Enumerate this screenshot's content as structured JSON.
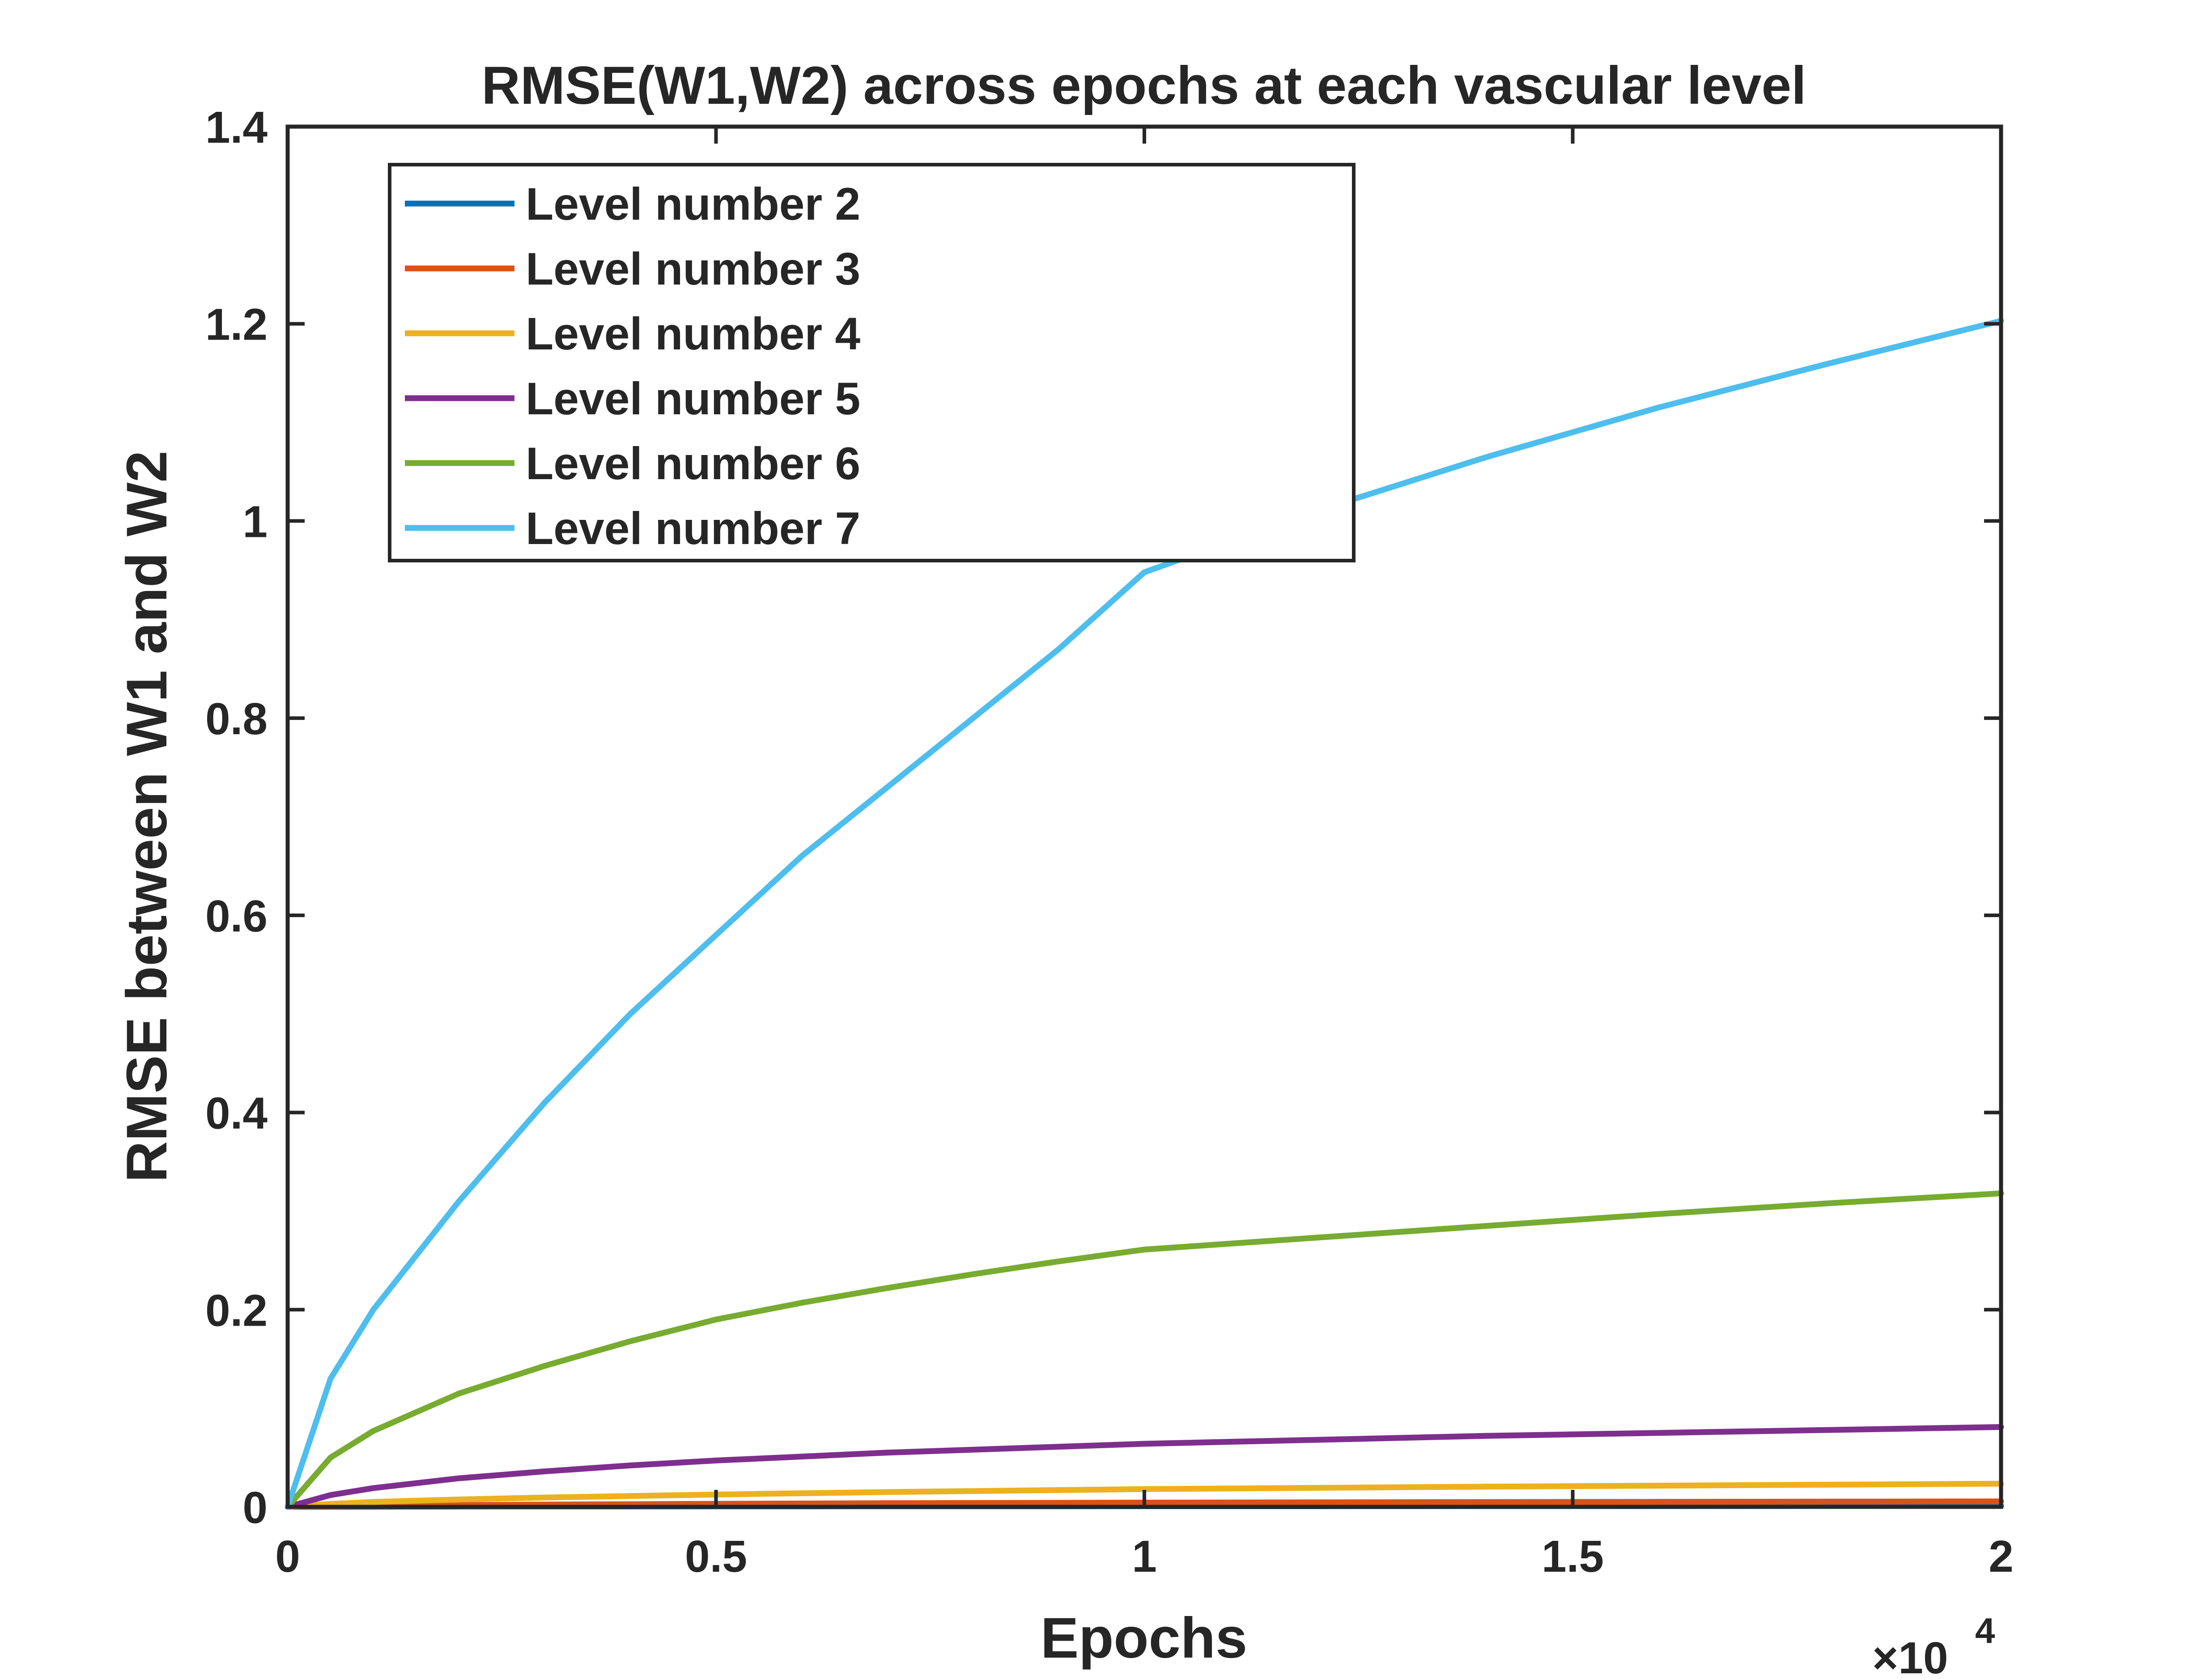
{
  "chart_data": {
    "type": "line",
    "title": "RMSE(W1,W2) across epochs at each vascular level",
    "xlabel": "Epochs",
    "ylabel": "RMSE between W1 and W2",
    "x_multiplier_label": "×10",
    "x_multiplier_exponent": "4",
    "xlim": [
      0,
      20000
    ],
    "ylim": [
      0,
      1.4
    ],
    "x_ticks": [
      0,
      5000,
      10000,
      15000,
      20000
    ],
    "x_tick_labels": [
      "0",
      "0.5",
      "1",
      "1.5",
      "2"
    ],
    "y_ticks": [
      0,
      0.2,
      0.4,
      0.6,
      0.8,
      1.0,
      1.2,
      1.4
    ],
    "y_tick_labels": [
      "0",
      "0.2",
      "0.4",
      "0.6",
      "0.8",
      "1",
      "1.2",
      "1.4"
    ],
    "grid": false,
    "legend_position": "top-left",
    "x": [
      0,
      500,
      1000,
      2000,
      3000,
      4000,
      5000,
      6000,
      7000,
      8000,
      9000,
      10000,
      12000,
      14000,
      16000,
      18000,
      20000
    ],
    "series": [
      {
        "name": "Level number 2",
        "color": "#0072BD",
        "values": [
          0,
          0.0001,
          0.0002,
          0.0003,
          0.0004,
          0.0004,
          0.0005,
          0.0005,
          0.0006,
          0.0006,
          0.0006,
          0.0007,
          0.0007,
          0.0008,
          0.0008,
          0.0009,
          0.0009
        ]
      },
      {
        "name": "Level number 3",
        "color": "#D95319",
        "values": [
          0,
          0.0006,
          0.0011,
          0.0018,
          0.0023,
          0.0027,
          0.0031,
          0.0034,
          0.0037,
          0.0039,
          0.0041,
          0.0043,
          0.0046,
          0.0049,
          0.0051,
          0.0053,
          0.0055
        ]
      },
      {
        "name": "Level number 4",
        "color": "#EDB120",
        "values": [
          0,
          0.003,
          0.005,
          0.0075,
          0.0095,
          0.011,
          0.0125,
          0.0138,
          0.015,
          0.016,
          0.017,
          0.018,
          0.0193,
          0.0205,
          0.0215,
          0.0225,
          0.0235
        ]
      },
      {
        "name": "Level number 5",
        "color": "#7E2F8E",
        "values": [
          0,
          0.012,
          0.019,
          0.029,
          0.036,
          0.042,
          0.047,
          0.051,
          0.055,
          0.058,
          0.061,
          0.064,
          0.068,
          0.072,
          0.075,
          0.078,
          0.081
        ]
      },
      {
        "name": "Level number 6",
        "color": "#77AC30",
        "values": [
          0,
          0.05,
          0.077,
          0.115,
          0.143,
          0.168,
          0.19,
          0.207,
          0.222,
          0.236,
          0.249,
          0.261,
          0.273,
          0.285,
          0.297,
          0.308,
          0.318
        ]
      },
      {
        "name": "Level number 7",
        "color": "#4DBEEE",
        "values": [
          0,
          0.13,
          0.2,
          0.31,
          0.41,
          0.5,
          0.58,
          0.66,
          0.73,
          0.8,
          0.87,
          0.948,
          1.01,
          1.065,
          1.115,
          1.16,
          1.203
        ]
      }
    ]
  }
}
